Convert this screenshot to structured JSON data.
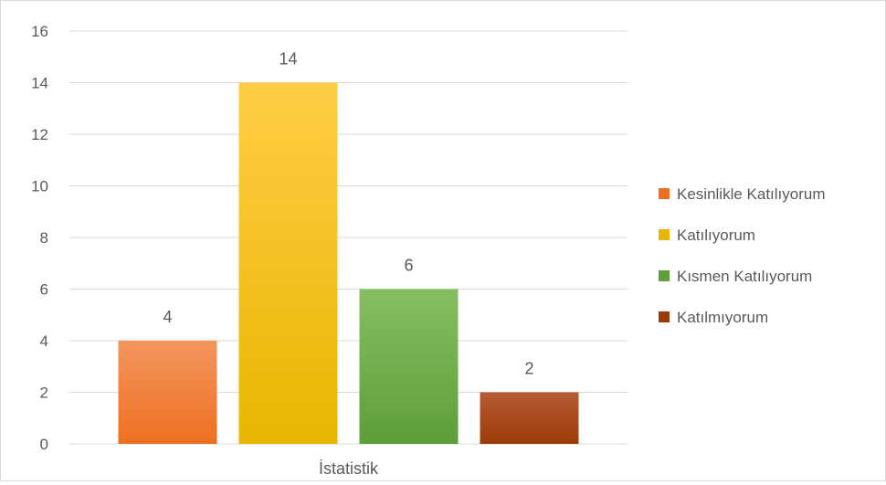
{
  "chart_data": {
    "type": "bar",
    "title": "",
    "xlabel": "",
    "ylabel": "",
    "categories": [
      "İstatistik"
    ],
    "ylim": [
      0,
      16
    ],
    "yticks": [
      "0",
      "2",
      "4",
      "6",
      "8",
      "10",
      "12",
      "14",
      "16"
    ],
    "grid": true,
    "legend_position": "right",
    "series": [
      {
        "name": "Kesinlikle Katılıyorum",
        "values": [
          4
        ],
        "label": "4",
        "color_top": "#F4955F",
        "color_bottom": "#ED7020"
      },
      {
        "name": "Katılıyorum",
        "values": [
          14
        ],
        "label": "14",
        "color_top": "#FFCD45",
        "color_bottom": "#E8B600"
      },
      {
        "name": "Kısmen Katılıyorum",
        "values": [
          6
        ],
        "label": "6",
        "color_top": "#86BF62",
        "color_bottom": "#5D9E38"
      },
      {
        "name": "Katılmıyorum",
        "values": [
          2
        ],
        "label": "2",
        "color_top": "#B55B35",
        "color_bottom": "#9B3B05"
      }
    ]
  }
}
